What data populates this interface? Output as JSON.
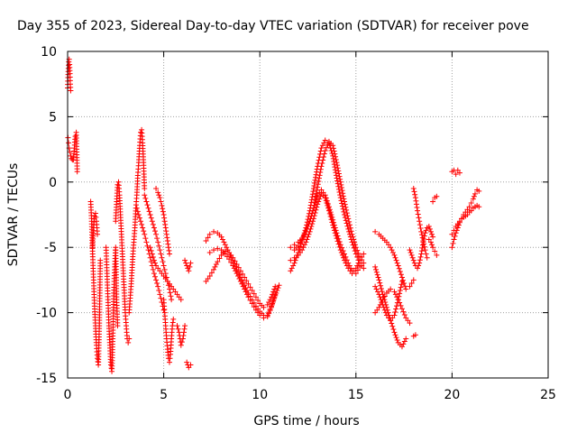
{
  "chart_data": {
    "type": "scatter",
    "title": "Day 355 of 2023, Sidereal Day-to-day VTEC variation (SDTVAR) for receiver pove",
    "xlabel": "GPS time / hours",
    "ylabel": "SDTVAR / TECUs",
    "xlim": [
      0,
      25
    ],
    "ylim": [
      -15,
      10
    ],
    "x_ticks": [
      0,
      5,
      10,
      15,
      20,
      25
    ],
    "y_ticks": [
      -15,
      -10,
      -5,
      0,
      5,
      10
    ],
    "grid": true,
    "marker": "+",
    "marker_color": "#ff0000",
    "series": [
      {
        "name": "SDTVAR",
        "segments": [
          {
            "x": [
              0.0,
              0.02,
              0.04,
              0.06,
              0.08,
              0.1,
              0.12,
              0.14,
              0.16
            ],
            "y": [
              7.2,
              8.0,
              8.7,
              9.2,
              9.4,
              9.0,
              8.3,
              7.5,
              7.0
            ]
          },
          {
            "x": [
              0.02,
              0.05,
              0.08,
              0.12,
              0.16,
              0.2,
              0.25,
              0.3,
              0.4,
              0.45,
              0.5
            ],
            "y": [
              3.4,
              3.0,
              2.6,
              2.3,
              2.0,
              1.8,
              1.7,
              1.7,
              3.5,
              3.8,
              0.8
            ]
          },
          {
            "x": [
              1.2,
              1.25,
              1.3,
              1.35,
              1.4,
              1.45,
              1.5,
              1.55,
              1.6,
              1.65,
              1.7
            ],
            "y": [
              -1.5,
              -3.0,
              -5.5,
              -7.5,
              -9.5,
              -11.0,
              -12.5,
              -13.5,
              -14.0,
              -11.0,
              -6.0
            ]
          },
          {
            "x": [
              1.3,
              1.35,
              1.4,
              1.45,
              1.5,
              1.55
            ],
            "y": [
              -5.0,
              -3.5,
              -2.6,
              -2.4,
              -3.0,
              -4.0
            ]
          },
          {
            "x": [
              2.0,
              2.05,
              2.1,
              2.15,
              2.2,
              2.25,
              2.3,
              2.35,
              2.4,
              2.45,
              2.5,
              2.55,
              2.6
            ],
            "y": [
              -5.0,
              -7.0,
              -9.0,
              -11.0,
              -12.5,
              -14.0,
              -14.5,
              -12.0,
              -8.5,
              -6.5,
              -5.0,
              -9.0,
              -11.0
            ]
          },
          {
            "x": [
              2.5,
              2.55,
              2.6,
              2.65,
              2.7,
              2.75,
              2.8,
              2.85,
              2.9,
              2.95,
              3.0,
              3.05,
              3.1,
              3.15,
              3.2
            ],
            "y": [
              -3.0,
              -1.5,
              -0.2,
              0.0,
              -1.0,
              -2.5,
              -4.0,
              -5.5,
              -7.0,
              -8.5,
              -10.0,
              -11.0,
              -12.0,
              -12.3,
              -12.0
            ]
          },
          {
            "x": [
              3.2,
              3.3,
              3.4,
              3.5,
              3.55,
              3.6,
              3.65,
              3.7,
              3.75,
              3.8,
              3.85,
              3.9,
              3.95,
              4.0
            ],
            "y": [
              -10.0,
              -8.0,
              -5.5,
              -3.5,
              -2.0,
              -1.0,
              0.5,
              1.5,
              2.8,
              3.8,
              4.0,
              3.0,
              1.5,
              -0.5
            ]
          },
          {
            "x": [
              3.6,
              3.7,
              3.8,
              3.9,
              4.0,
              4.1,
              4.2,
              4.3,
              4.4,
              4.5,
              4.6,
              4.7,
              4.8,
              4.9,
              5.0
            ],
            "y": [
              -2.0,
              -2.5,
              -3.0,
              -3.5,
              -4.0,
              -4.6,
              -5.2,
              -5.8,
              -6.4,
              -7.0,
              -7.5,
              -8.0,
              -8.6,
              -9.2,
              -9.8
            ]
          },
          {
            "x": [
              4.0,
              4.1,
              4.2,
              4.3,
              4.4,
              4.5,
              4.6,
              4.7,
              4.8,
              4.9,
              5.0,
              5.1,
              5.2,
              5.3,
              5.4
            ],
            "y": [
              -1.0,
              -1.5,
              -2.0,
              -2.5,
              -3.0,
              -3.5,
              -4.0,
              -4.6,
              -5.2,
              -5.8,
              -6.4,
              -7.0,
              -7.6,
              -8.2,
              -9.0
            ]
          },
          {
            "x": [
              4.3,
              4.4,
              4.5,
              4.6,
              4.7,
              4.8,
              4.9,
              5.0,
              5.1,
              5.2,
              5.3,
              5.4,
              5.5,
              5.6,
              5.7,
              5.8,
              5.9
            ],
            "y": [
              -5.0,
              -5.5,
              -6.0,
              -6.4,
              -6.6,
              -6.8,
              -7.0,
              -7.2,
              -7.4,
              -7.6,
              -7.8,
              -8.0,
              -8.2,
              -8.4,
              -8.6,
              -8.8,
              -9.0
            ]
          },
          {
            "x": [
              4.6,
              4.7,
              4.8,
              4.9,
              5.0,
              5.1,
              5.2,
              5.3
            ],
            "y": [
              -0.5,
              -0.8,
              -1.2,
              -1.8,
              -2.5,
              -3.5,
              -4.5,
              -5.5
            ]
          },
          {
            "x": [
              5.0,
              5.05,
              5.1,
              5.15,
              5.2,
              5.25,
              5.3,
              5.35,
              5.4,
              5.45,
              5.5
            ],
            "y": [
              -9.0,
              -10.0,
              -11.0,
              -12.0,
              -12.8,
              -13.5,
              -13.8,
              -13.2,
              -12.0,
              -11.0,
              -10.5
            ]
          },
          {
            "x": [
              5.7,
              5.8,
              5.9,
              6.0,
              6.1
            ],
            "y": [
              -11.0,
              -11.5,
              -12.5,
              -12.0,
              -11.0
            ]
          },
          {
            "x": [
              6.1,
              6.2,
              6.3,
              6.4
            ],
            "y": [
              -6.0,
              -6.4,
              -6.8,
              -6.2
            ]
          },
          {
            "x": [
              6.2,
              6.3,
              6.4
            ],
            "y": [
              -13.8,
              -14.2,
              -14.0
            ]
          },
          {
            "x": [
              7.2,
              7.4,
              7.6,
              7.8,
              8.0,
              8.2,
              8.4,
              8.6,
              8.8,
              9.0,
              9.2,
              9.4,
              9.6,
              9.8,
              10.0,
              10.2,
              10.4,
              10.6,
              10.8
            ],
            "y": [
              -4.5,
              -4.0,
              -3.8,
              -3.9,
              -4.2,
              -4.8,
              -5.4,
              -6.0,
              -6.7,
              -7.3,
              -7.9,
              -8.5,
              -9.0,
              -9.5,
              -9.9,
              -10.2,
              -10.3,
              -9.6,
              -8.6
            ]
          },
          {
            "x": [
              7.2,
              7.4,
              7.6,
              7.8,
              8.0,
              8.2,
              8.4,
              8.6,
              8.8,
              9.0,
              9.2,
              9.4,
              9.6,
              9.8,
              10.0,
              10.2,
              10.4,
              10.6,
              10.8
            ],
            "y": [
              -7.6,
              -7.2,
              -6.7,
              -6.1,
              -5.6,
              -5.3,
              -5.4,
              -5.8,
              -6.3,
              -6.8,
              -7.3,
              -7.8,
              -8.3,
              -8.8,
              -9.3,
              -9.6,
              -9.4,
              -8.8,
              -8.0
            ]
          },
          {
            "x": [
              7.4,
              7.6,
              7.8,
              8.0,
              8.2,
              8.4,
              8.6,
              8.8,
              9.0,
              9.2,
              9.4,
              9.6,
              9.8,
              10.0,
              10.2,
              10.4,
              10.6,
              10.8,
              11.0
            ],
            "y": [
              -5.4,
              -5.2,
              -5.1,
              -5.2,
              -5.5,
              -5.9,
              -6.4,
              -7.0,
              -7.6,
              -8.2,
              -8.8,
              -9.3,
              -9.8,
              -10.2,
              -10.4,
              -10.2,
              -9.5,
              -8.7,
              -7.9
            ]
          },
          {
            "x": [
              11.6,
              11.8,
              12.0,
              12.2,
              12.4,
              12.6,
              12.8,
              13.0,
              13.2,
              13.4,
              13.6,
              13.8,
              14.0,
              14.2,
              14.4,
              14.6,
              14.8,
              15.0,
              15.2,
              15.4
            ],
            "y": [
              -6.8,
              -6.2,
              -5.4,
              -4.5,
              -3.5,
              -2.2,
              -0.5,
              1.2,
              2.6,
              3.2,
              3.0,
              2.0,
              0.3,
              -1.2,
              -2.5,
              -3.6,
              -4.6,
              -5.5,
              -6.2,
              -6.6
            ]
          },
          {
            "x": [
              11.6,
              11.8,
              12.0,
              12.2,
              12.4,
              12.6,
              12.8,
              13.0,
              13.2,
              13.4,
              13.6,
              13.8,
              14.0,
              14.2,
              14.4,
              14.6,
              14.8,
              15.0,
              15.2,
              15.4
            ],
            "y": [
              -5.0,
              -4.8,
              -4.6,
              -4.3,
              -3.8,
              -3.0,
              -2.0,
              -0.4,
              1.2,
              2.4,
              3.1,
              2.8,
              1.5,
              0.0,
              -1.5,
              -2.8,
              -4.0,
              -5.0,
              -5.7,
              -6.2
            ]
          },
          {
            "x": [
              11.6,
              11.8,
              12.0,
              12.2,
              12.4,
              12.6,
              12.8,
              13.0,
              13.2,
              13.4,
              13.6,
              13.8,
              14.0,
              14.2,
              14.4,
              14.6,
              14.8,
              15.0,
              15.2,
              15.4
            ],
            "y": [
              -6.0,
              -5.8,
              -5.6,
              -5.2,
              -4.6,
              -3.8,
              -2.8,
              -1.7,
              -0.9,
              -1.2,
              -2.2,
              -3.3,
              -4.3,
              -5.2,
              -6.0,
              -6.6,
              -7.0,
              -6.6,
              -6.0,
              -5.5
            ]
          },
          {
            "x": [
              11.8,
              12.0,
              12.2,
              12.4,
              12.6,
              12.8,
              13.0,
              13.2,
              13.4,
              13.6,
              13.8,
              14.0,
              14.2,
              14.4,
              14.6,
              14.8,
              15.0,
              15.2
            ],
            "y": [
              -5.2,
              -4.9,
              -4.4,
              -3.8,
              -3.0,
              -2.0,
              -1.0,
              -0.6,
              -1.0,
              -1.9,
              -2.9,
              -3.9,
              -4.8,
              -5.5,
              -6.2,
              -6.8,
              -7.0,
              -6.5
            ]
          },
          {
            "x": [
              16.0,
              16.2,
              16.4,
              16.6,
              16.8,
              17.0,
              17.2,
              17.4,
              17.6,
              17.8,
              18.0
            ],
            "y": [
              -3.8,
              -4.0,
              -4.3,
              -4.6,
              -5.0,
              -5.6,
              -6.4,
              -7.3,
              -8.2,
              -8.0,
              -7.5
            ]
          },
          {
            "x": [
              16.0,
              16.2,
              16.4,
              16.6,
              16.8,
              17.0,
              17.2,
              17.4,
              17.6
            ],
            "y": [
              -6.5,
              -7.5,
              -8.6,
              -9.6,
              -10.6,
              -11.5,
              -12.3,
              -12.6,
              -12.0
            ]
          },
          {
            "x": [
              16.0,
              16.2,
              16.4,
              16.6,
              16.8,
              17.0,
              17.2,
              17.4,
              17.6,
              17.8
            ],
            "y": [
              -10.0,
              -9.6,
              -9.0,
              -8.5,
              -8.2,
              -8.4,
              -9.0,
              -9.7,
              -10.4,
              -10.8
            ]
          },
          {
            "x": [
              16.0,
              16.2,
              16.4,
              16.6,
              16.8,
              17.0,
              17.2,
              17.4
            ],
            "y": [
              -8.0,
              -8.6,
              -9.4,
              -10.2,
              -10.6,
              -10.2,
              -9.0,
              -7.6
            ]
          },
          {
            "x": [
              18.0,
              18.1
            ],
            "y": [
              -11.8,
              -11.7
            ]
          },
          {
            "x": [
              17.8,
              17.9,
              18.0,
              18.1,
              18.2,
              18.3,
              18.4,
              18.5,
              18.6,
              18.7,
              18.8,
              18.9,
              19.0
            ],
            "y": [
              -5.2,
              -5.6,
              -6.0,
              -6.4,
              -6.6,
              -6.2,
              -5.5,
              -4.6,
              -3.9,
              -3.5,
              -3.4,
              -3.8,
              -4.2
            ]
          },
          {
            "x": [
              18.0,
              18.1,
              18.2,
              18.3,
              18.4,
              18.5,
              18.6,
              18.7
            ],
            "y": [
              -0.5,
              -1.2,
              -2.2,
              -3.0,
              -3.8,
              -4.5,
              -5.2,
              -5.8
            ]
          },
          {
            "x": [
              18.8,
              18.9,
              19.0,
              19.1,
              19.2
            ],
            "y": [
              -4.4,
              -4.6,
              -5.0,
              -5.3,
              -5.6
            ]
          },
          {
            "x": [
              19.0,
              19.1,
              19.2
            ],
            "y": [
              -1.5,
              -1.2,
              -1.1
            ]
          },
          {
            "x": [
              20.0,
              20.1,
              20.2,
              20.3,
              20.4
            ],
            "y": [
              0.8,
              0.9,
              0.6,
              0.9,
              0.7
            ]
          },
          {
            "x": [
              20.0,
              20.1,
              20.2,
              20.3,
              20.4,
              20.5,
              20.6,
              20.7,
              20.8,
              20.9,
              21.0,
              21.1,
              21.2,
              21.3,
              21.4
            ],
            "y": [
              -5.0,
              -4.4,
              -3.9,
              -3.5,
              -3.1,
              -2.8,
              -2.5,
              -2.3,
              -2.1,
              -1.9,
              -1.6,
              -1.3,
              -0.9,
              -0.6,
              -0.7
            ]
          },
          {
            "x": [
              20.0,
              20.1,
              20.2,
              20.3,
              20.4,
              20.5,
              20.6,
              20.7,
              20.8,
              20.9,
              21.0,
              21.1,
              21.2,
              21.3,
              21.4
            ],
            "y": [
              -4.0,
              -3.7,
              -3.4,
              -3.2,
              -3.0,
              -2.8,
              -2.7,
              -2.6,
              -2.5,
              -2.3,
              -2.2,
              -2.0,
              -1.9,
              -1.8,
              -1.9
            ]
          }
        ]
      }
    ]
  }
}
